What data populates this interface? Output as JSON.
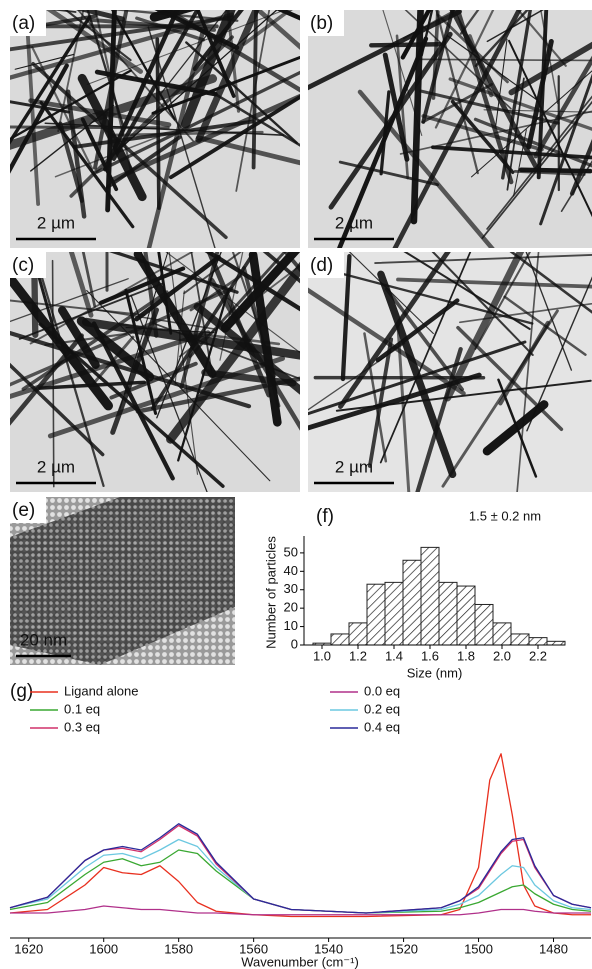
{
  "images": [
    {
      "label": "(a)",
      "scale_bar": "2 µm"
    },
    {
      "label": "(b)",
      "scale_bar": "2 µm"
    },
    {
      "label": "(c)",
      "scale_bar": "2 µm"
    },
    {
      "label": "(d)",
      "scale_bar": "2 µm"
    },
    {
      "label": "(e)",
      "scale_bar": "20 nm"
    }
  ],
  "chart_data": [
    {
      "type": "histogram",
      "label": "(f)",
      "annotation": "1.5 ± 0.2 nm",
      "x_label": "Size (nm)",
      "y_label": "Number of particles",
      "bins": [
        0.95,
        1.05,
        1.15,
        1.25,
        1.35,
        1.45,
        1.55,
        1.65,
        1.75,
        1.85,
        1.95,
        2.05,
        2.15,
        2.25,
        2.35
      ],
      "counts": [
        1,
        6,
        12,
        33,
        34,
        46,
        53,
        34,
        32,
        22,
        12,
        6,
        4,
        2
      ],
      "color": "#222222",
      "hatch": true,
      "xlim": [
        0.9,
        2.35
      ],
      "xticks": [
        1.0,
        1.2,
        1.4,
        1.6,
        1.8,
        2.0,
        2.2
      ],
      "ylim": [
        0,
        57
      ],
      "yticks": [
        0,
        10,
        20,
        30,
        40,
        50
      ]
    },
    {
      "type": "line",
      "label": "(g)",
      "x_label": "Wavenumber (cm⁻¹)",
      "x": [
        1625,
        1615,
        1605,
        1600,
        1595,
        1590,
        1585,
        1580,
        1575,
        1570,
        1560,
        1550,
        1530,
        1510,
        1505,
        1500,
        1497,
        1494,
        1491,
        1488,
        1485,
        1480,
        1475,
        1470
      ],
      "xlim": [
        1625,
        1470
      ],
      "xticks": [
        1620,
        1600,
        1580,
        1560,
        1540,
        1520,
        1500,
        1480
      ],
      "ylim": [
        0,
        100
      ],
      "series": [
        {
          "name": "Ligand alone",
          "color": "#e8301f",
          "values": [
            4,
            6,
            20,
            30,
            27,
            26,
            31,
            22,
            10,
            5,
            3,
            2,
            2,
            3,
            6,
            30,
            80,
            95,
            60,
            20,
            8,
            4,
            3,
            3
          ]
        },
        {
          "name": "0.0 eq",
          "color": "#b0308a",
          "values": [
            4,
            4,
            6,
            8,
            7,
            6,
            6,
            5,
            4,
            4,
            3,
            3,
            3,
            3,
            3,
            4,
            5,
            6,
            6,
            6,
            5,
            4,
            4,
            4
          ]
        },
        {
          "name": "0.1 eq",
          "color": "#3aa832",
          "values": [
            6,
            10,
            26,
            33,
            35,
            31,
            33,
            40,
            38,
            28,
            12,
            6,
            4,
            5,
            7,
            10,
            13,
            16,
            19,
            20,
            15,
            9,
            6,
            5
          ]
        },
        {
          "name": "0.2 eq",
          "color": "#6cc8e0",
          "values": [
            7,
            12,
            30,
            37,
            38,
            35,
            40,
            46,
            42,
            30,
            12,
            6,
            4,
            6,
            9,
            14,
            20,
            26,
            31,
            30,
            20,
            11,
            7,
            6
          ]
        },
        {
          "name": "0.3 eq",
          "color": "#d0306a",
          "values": [
            7,
            13,
            34,
            40,
            41,
            39,
            46,
            54,
            48,
            32,
            12,
            6,
            4,
            7,
            11,
            18,
            28,
            38,
            45,
            46,
            30,
            14,
            9,
            7
          ]
        },
        {
          "name": "0.4 eq",
          "color": "#2a2a9a",
          "values": [
            7,
            13,
            34,
            40,
            42,
            40,
            47,
            55,
            49,
            33,
            12,
            6,
            4,
            7,
            11,
            19,
            29,
            39,
            46,
            47,
            31,
            14,
            9,
            7
          ]
        }
      ]
    }
  ]
}
